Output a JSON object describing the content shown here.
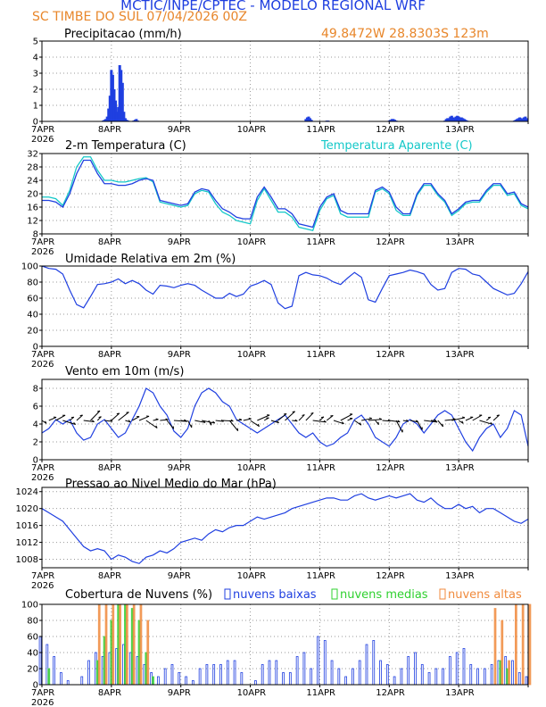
{
  "header": {
    "title": "MCTIC/INPE/CPTEC - MODELO REGIONAL WRF",
    "station": "SC TIMBE DO SUL    07/04/2026 00Z",
    "coords": "49.8472W  28.8303S  123m"
  },
  "colors": {
    "blue": "#1f3fe0",
    "cyan": "#14c8c8",
    "green": "#2fd02f",
    "orange": "#f08a3c",
    "black": "#000000"
  },
  "x_axis": {
    "labels": [
      "7APR",
      "8APR",
      "9APR",
      "10APR",
      "11APR",
      "12APR",
      "13APR"
    ],
    "year": "2026"
  },
  "chart_data": [
    {
      "type": "bar",
      "title": "Precipitacao (mm/h)",
      "ylim": [
        0,
        5
      ],
      "yticks": [
        0,
        1,
        2,
        3,
        4,
        5
      ],
      "x": [
        0.25,
        0.88,
        0.9,
        0.92,
        0.94,
        0.96,
        0.98,
        1.0,
        1.02,
        1.04,
        1.06,
        1.08,
        1.1,
        1.12,
        1.14,
        1.16,
        1.18,
        1.2,
        1.22,
        1.24,
        1.26,
        1.28,
        1.3,
        1.32,
        1.34,
        1.36,
        1.38,
        3.8,
        3.82,
        3.84,
        3.86,
        3.88,
        4.1,
        4.12,
        5.0,
        5.02,
        5.04,
        5.06,
        5.08,
        5.1,
        5.8,
        5.82,
        5.84,
        5.86,
        5.88,
        5.9,
        5.92,
        5.94,
        5.96,
        5.98,
        6.0,
        6.02,
        6.04,
        6.06,
        6.08,
        6.1,
        6.12,
        6.14,
        6.16,
        6.8,
        6.82,
        6.84,
        6.86,
        6.88,
        6.9,
        6.92,
        6.94,
        6.96,
        6.98
      ],
      "values": [
        0.03,
        0.05,
        0.1,
        0.15,
        0.3,
        0.8,
        1.6,
        3.2,
        2.9,
        2.0,
        1.3,
        0.6,
        0.9,
        3.5,
        3.2,
        2.4,
        0.6,
        0.2,
        0.1,
        0.05,
        0.03,
        0.02,
        0.02,
        0.05,
        0.1,
        0.15,
        0.05,
        0.15,
        0.25,
        0.3,
        0.2,
        0.1,
        0.05,
        0.05,
        0.05,
        0.1,
        0.15,
        0.15,
        0.1,
        0.05,
        0.05,
        0.15,
        0.2,
        0.2,
        0.3,
        0.35,
        0.25,
        0.2,
        0.3,
        0.35,
        0.3,
        0.25,
        0.25,
        0.2,
        0.15,
        0.1,
        0.05,
        0.03,
        0.03,
        0.05,
        0.1,
        0.15,
        0.2,
        0.25,
        0.2,
        0.15,
        0.25,
        0.3,
        0.2
      ]
    },
    {
      "type": "line",
      "title": "2-m Temperatura (C)",
      "legend": "Temperatura Aparente (C)",
      "ylim": [
        8,
        32
      ],
      "yticks": [
        8,
        12,
        16,
        20,
        24,
        28,
        32
      ],
      "x": [
        0,
        0.1,
        0.2,
        0.3,
        0.4,
        0.5,
        0.6,
        0.7,
        0.8,
        0.9,
        1.0,
        1.1,
        1.2,
        1.3,
        1.4,
        1.5,
        1.6,
        1.7,
        1.8,
        1.9,
        2.0,
        2.1,
        2.2,
        2.3,
        2.4,
        2.5,
        2.6,
        2.7,
        2.8,
        2.9,
        3.0,
        3.1,
        3.2,
        3.3,
        3.4,
        3.5,
        3.6,
        3.7,
        3.8,
        3.9,
        4.0,
        4.1,
        4.2,
        4.3,
        4.4,
        4.5,
        4.6,
        4.7,
        4.8,
        4.9,
        5.0,
        5.1,
        5.2,
        5.3,
        5.4,
        5.5,
        5.6,
        5.7,
        5.8,
        5.9,
        6.0,
        6.1,
        6.2,
        6.3,
        6.4,
        6.5,
        6.6,
        6.7,
        6.8,
        6.9,
        7.0
      ],
      "series": [
        {
          "name": "2-m Temperatura",
          "color": "#1f3fe0",
          "values": [
            18,
            18,
            17.5,
            16,
            20,
            26,
            30,
            30,
            26,
            23,
            23,
            22.5,
            22.5,
            23,
            24,
            24.5,
            24,
            18,
            17.5,
            17,
            16.5,
            17,
            20.5,
            21.5,
            21,
            18,
            15.5,
            14.5,
            13,
            12.5,
            12.5,
            19,
            22,
            19,
            15.5,
            15.5,
            14,
            11,
            10.5,
            10,
            16,
            19,
            20,
            15,
            14,
            14,
            14,
            14,
            21,
            22,
            20.5,
            16,
            14,
            14,
            20,
            23,
            23,
            20,
            18,
            14,
            15.5,
            17.5,
            18,
            18,
            21,
            23,
            23,
            20,
            20.5,
            17,
            16
          ]
        },
        {
          "name": "Temperatura Aparente",
          "color": "#14c8c8",
          "values": [
            19,
            19,
            18.5,
            16.5,
            21,
            28,
            31,
            31,
            27,
            24,
            24,
            23.5,
            23.5,
            24,
            24.5,
            24.8,
            23.5,
            17.5,
            17,
            16.5,
            16,
            16.5,
            20,
            21,
            20.5,
            17,
            14.5,
            13.5,
            12,
            11.5,
            11,
            18,
            21.5,
            18,
            14.5,
            14.5,
            13,
            10,
            9.5,
            9,
            15,
            18.5,
            19.5,
            14,
            13,
            13,
            13,
            13,
            20.5,
            21.5,
            20,
            15,
            13.5,
            13.5,
            19.5,
            22.5,
            22.5,
            19.5,
            17.5,
            13.5,
            15,
            17,
            17.5,
            17.5,
            20.5,
            22.5,
            22.5,
            19.5,
            20,
            16.5,
            15.5
          ]
        }
      ]
    },
    {
      "type": "line",
      "title": "Umidade Relativa em 2m (%)",
      "ylim": [
        0,
        100
      ],
      "yticks": [
        0,
        20,
        40,
        60,
        80,
        100
      ],
      "x": [
        0,
        0.1,
        0.2,
        0.3,
        0.4,
        0.5,
        0.6,
        0.7,
        0.8,
        0.9,
        1.0,
        1.1,
        1.2,
        1.3,
        1.4,
        1.5,
        1.6,
        1.7,
        1.8,
        1.9,
        2.0,
        2.1,
        2.2,
        2.3,
        2.4,
        2.5,
        2.6,
        2.7,
        2.8,
        2.9,
        3.0,
        3.1,
        3.2,
        3.3,
        3.4,
        3.5,
        3.6,
        3.7,
        3.8,
        3.9,
        4.0,
        4.1,
        4.2,
        4.3,
        4.4,
        4.5,
        4.6,
        4.7,
        4.8,
        4.9,
        5.0,
        5.1,
        5.2,
        5.3,
        5.4,
        5.5,
        5.6,
        5.7,
        5.8,
        5.9,
        6.0,
        6.1,
        6.2,
        6.3,
        6.4,
        6.5,
        6.6,
        6.7,
        6.8,
        6.9,
        7.0
      ],
      "values": [
        100,
        97,
        96,
        90,
        70,
        52,
        48,
        62,
        77,
        78,
        80,
        84,
        78,
        82,
        78,
        70,
        65,
        76,
        75,
        73,
        76,
        78,
        76,
        70,
        65,
        60,
        60,
        66,
        62,
        65,
        75,
        78,
        82,
        77,
        54,
        47,
        50,
        88,
        92,
        89,
        88,
        85,
        80,
        77,
        85,
        92,
        86,
        58,
        55,
        72,
        88,
        90,
        92,
        95,
        93,
        90,
        77,
        70,
        72,
        92,
        97,
        96,
        90,
        88,
        80,
        72,
        68,
        64,
        66,
        78,
        93
      ]
    },
    {
      "type": "line",
      "title": "Vento em 10m (m/s)",
      "ylim": [
        0,
        9
      ],
      "yticks": [
        0,
        2,
        4,
        6,
        8
      ],
      "x": [
        0,
        0.1,
        0.2,
        0.3,
        0.4,
        0.5,
        0.6,
        0.7,
        0.8,
        0.9,
        1.0,
        1.1,
        1.2,
        1.3,
        1.4,
        1.5,
        1.6,
        1.7,
        1.8,
        1.9,
        2.0,
        2.1,
        2.2,
        2.3,
        2.4,
        2.5,
        2.6,
        2.7,
        2.8,
        2.9,
        3.0,
        3.1,
        3.2,
        3.3,
        3.4,
        3.5,
        3.6,
        3.7,
        3.8,
        3.9,
        4.0,
        4.1,
        4.2,
        4.3,
        4.4,
        4.5,
        4.6,
        4.7,
        4.8,
        4.9,
        5.0,
        5.1,
        5.2,
        5.3,
        5.4,
        5.5,
        5.6,
        5.7,
        5.8,
        5.9,
        6.0,
        6.1,
        6.2,
        6.3,
        6.4,
        6.5,
        6.6,
        6.7,
        6.8,
        6.9,
        7.0
      ],
      "values": [
        3,
        3.5,
        4.5,
        4,
        4.5,
        3,
        2.2,
        2.5,
        4,
        4.5,
        3.5,
        2.5,
        3,
        4.5,
        6,
        8,
        7.5,
        6,
        5,
        3.2,
        2.5,
        3.5,
        6,
        7.5,
        8,
        7.5,
        6.5,
        6,
        4.5,
        4,
        3.5,
        3,
        3.5,
        4,
        4.5,
        5,
        4,
        3,
        2.5,
        3,
        2,
        1.5,
        1.8,
        2.5,
        3,
        4.5,
        5,
        4,
        2.5,
        2,
        1.5,
        2.5,
        4,
        4.5,
        4,
        3,
        4,
        5,
        5.5,
        5,
        3.5,
        2,
        1,
        2.5,
        3.5,
        4,
        2.5,
        3.5,
        5.5,
        5,
        1.5
      ],
      "vector_baseline": 4.4
    },
    {
      "type": "line",
      "title": "Pressao ao Nivel Medio do Mar (hPa)",
      "ylim": [
        1006,
        1025
      ],
      "yticks": [
        1008,
        1012,
        1016,
        1020,
        1024
      ],
      "x": [
        0,
        0.1,
        0.2,
        0.3,
        0.4,
        0.5,
        0.6,
        0.7,
        0.8,
        0.9,
        1.0,
        1.1,
        1.2,
        1.3,
        1.4,
        1.5,
        1.6,
        1.7,
        1.8,
        1.9,
        2.0,
        2.1,
        2.2,
        2.3,
        2.4,
        2.5,
        2.6,
        2.7,
        2.8,
        2.9,
        3.0,
        3.1,
        3.2,
        3.3,
        3.4,
        3.5,
        3.6,
        3.7,
        3.8,
        3.9,
        4.0,
        4.1,
        4.2,
        4.3,
        4.4,
        4.5,
        4.6,
        4.7,
        4.8,
        4.9,
        5.0,
        5.1,
        5.2,
        5.3,
        5.4,
        5.5,
        5.6,
        5.7,
        5.8,
        5.9,
        6.0,
        6.1,
        6.2,
        6.3,
        6.4,
        6.5,
        6.6,
        6.7,
        6.8,
        6.9,
        7.0
      ],
      "values": [
        1020,
        1019,
        1018,
        1017,
        1015,
        1013,
        1011,
        1010,
        1010.5,
        1010,
        1008,
        1009,
        1008.5,
        1007.5,
        1007,
        1008.5,
        1009,
        1010,
        1009.5,
        1010.5,
        1012,
        1012.5,
        1013,
        1012.5,
        1014,
        1015,
        1014.5,
        1015.5,
        1016,
        1016,
        1017,
        1018,
        1017.5,
        1018,
        1018.5,
        1019,
        1020,
        1020.5,
        1021,
        1021.5,
        1022,
        1022.5,
        1022.5,
        1022,
        1022,
        1023,
        1023.5,
        1022.5,
        1022,
        1022.5,
        1023,
        1022.5,
        1023,
        1023.5,
        1022,
        1021.5,
        1022.5,
        1021,
        1020,
        1020,
        1021,
        1020,
        1020.5,
        1019,
        1020,
        1020,
        1019,
        1018,
        1017,
        1016.5,
        1017.5
      ]
    },
    {
      "type": "bar",
      "title": "Cobertura de Nuvens (%)",
      "ylim": [
        0,
        100
      ],
      "yticks": [
        0,
        20,
        40,
        60,
        80,
        100
      ],
      "legend": [
        "nuvens baixas",
        "nuvens medias",
        "nuvens altas"
      ],
      "x": [
        0,
        0.1,
        0.2,
        0.3,
        0.4,
        0.5,
        0.6,
        0.7,
        0.8,
        0.9,
        1.0,
        1.1,
        1.2,
        1.3,
        1.4,
        1.5,
        1.6,
        1.7,
        1.8,
        1.9,
        2.0,
        2.1,
        2.2,
        2.3,
        2.4,
        2.5,
        2.6,
        2.7,
        2.8,
        2.9,
        3.0,
        3.1,
        3.2,
        3.3,
        3.4,
        3.5,
        3.6,
        3.7,
        3.8,
        3.9,
        4.0,
        4.1,
        4.2,
        4.3,
        4.4,
        4.5,
        4.6,
        4.7,
        4.8,
        4.9,
        5.0,
        5.1,
        5.2,
        5.3,
        5.4,
        5.5,
        5.6,
        5.7,
        5.8,
        5.9,
        6.0,
        6.1,
        6.2,
        6.3,
        6.4,
        6.5,
        6.6,
        6.7,
        6.8,
        6.9,
        7.0
      ],
      "series": [
        {
          "name": "nuvens baixas",
          "color": "#1f3fe0",
          "values": [
            60,
            50,
            35,
            15,
            5,
            0,
            10,
            30,
            40,
            35,
            40,
            45,
            50,
            40,
            35,
            25,
            15,
            10,
            20,
            25,
            15,
            10,
            5,
            20,
            25,
            25,
            25,
            30,
            30,
            15,
            0,
            5,
            25,
            30,
            30,
            15,
            15,
            35,
            40,
            20,
            60,
            55,
            30,
            20,
            10,
            20,
            30,
            50,
            55,
            30,
            25,
            10,
            20,
            35,
            40,
            25,
            15,
            20,
            20,
            35,
            40,
            45,
            25,
            20,
            20,
            25,
            30,
            35,
            30,
            15,
            10
          ]
        },
        {
          "name": "nuvens medias",
          "color": "#2fd02f",
          "values": [
            0,
            20,
            0,
            0,
            0,
            0,
            0,
            0,
            30,
            60,
            80,
            100,
            100,
            95,
            80,
            40,
            10,
            0,
            0,
            0,
            0,
            0,
            0,
            0,
            0,
            0,
            0,
            0,
            0,
            0,
            0,
            0,
            0,
            0,
            0,
            0,
            0,
            0,
            0,
            0,
            0,
            0,
            0,
            0,
            0,
            0,
            0,
            0,
            0,
            0,
            0,
            0,
            0,
            0,
            0,
            0,
            0,
            0,
            0,
            0,
            0,
            0,
            0,
            0,
            0,
            0,
            30,
            20,
            0,
            0,
            0
          ]
        },
        {
          "name": "nuvens altas",
          "color": "#f08a3c",
          "values": [
            0,
            0,
            0,
            0,
            0,
            0,
            0,
            0,
            100,
            100,
            100,
            100,
            100,
            100,
            100,
            80,
            0,
            0,
            0,
            0,
            0,
            0,
            0,
            0,
            0,
            0,
            0,
            0,
            0,
            0,
            0,
            0,
            0,
            0,
            0,
            0,
            0,
            0,
            0,
            0,
            0,
            0,
            0,
            0,
            0,
            0,
            0,
            0,
            0,
            0,
            0,
            0,
            0,
            0,
            0,
            0,
            0,
            0,
            0,
            0,
            0,
            0,
            0,
            0,
            0,
            95,
            80,
            30,
            100,
            100,
            100
          ]
        }
      ]
    }
  ]
}
